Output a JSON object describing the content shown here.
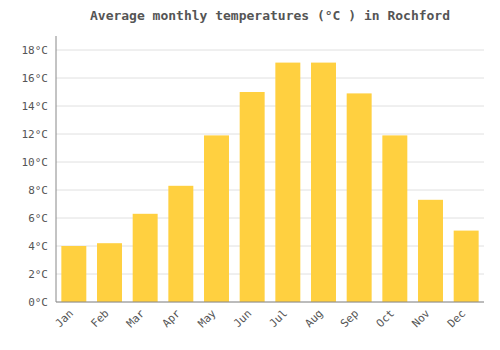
{
  "chart_data": {
    "type": "bar",
    "title": "Average monthly temperatures (°C ) in Rochford",
    "categories": [
      "Jan",
      "Feb",
      "Mar",
      "Apr",
      "May",
      "Jun",
      "Jul",
      "Aug",
      "Sep",
      "Oct",
      "Nov",
      "Dec"
    ],
    "values": [
      4.0,
      4.2,
      6.3,
      8.3,
      11.9,
      15.0,
      17.1,
      17.1,
      14.9,
      11.9,
      7.3,
      5.1
    ],
    "color": "#FFD040",
    "ylim": [
      0,
      19
    ],
    "yticks": [
      {
        "value": 0,
        "label": "0°C"
      },
      {
        "value": 2,
        "label": "2°C"
      },
      {
        "value": 4,
        "label": "4°C"
      },
      {
        "value": 6,
        "label": "6°C"
      },
      {
        "value": 8,
        "label": "8°C"
      },
      {
        "value": 10,
        "label": "10°C"
      },
      {
        "value": 12,
        "label": "12°C"
      },
      {
        "value": 14,
        "label": "14°C"
      },
      {
        "value": 16,
        "label": "16°C"
      },
      {
        "value": 18,
        "label": "18°C"
      }
    ],
    "grid": true
  }
}
